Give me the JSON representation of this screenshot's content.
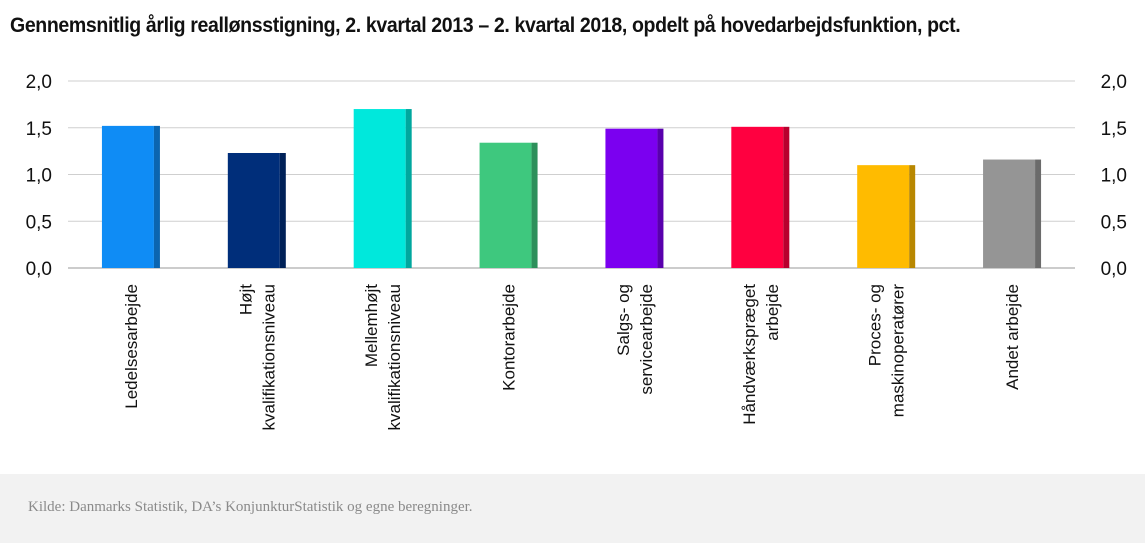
{
  "title": "Gennemsnitlig årlig reallønsstigning, 2. kvartal 2013 – 2. kvartal 2018, opdelt på hovedarbejdsfunktion, pct.",
  "source": "Kilde: Danmarks Statistik, DA’s KonjunkturStatistik og egne beregninger.",
  "chart_data": {
    "type": "bar",
    "title": "Gennemsnitlig årlig reallønsstigning, 2. kvartal 2013 – 2. kvartal 2018, opdelt på hovedarbejdsfunktion, pct.",
    "categories": [
      [
        "Ledelsesarbejde"
      ],
      [
        "Højt",
        "kvalifikationsniveau"
      ],
      [
        "Mellemhøjt",
        "kvalifikationsniveau"
      ],
      [
        "Kontorarbejde"
      ],
      [
        "Salgs- og",
        "servicearbejde"
      ],
      [
        "Håndværkspræget",
        "arbejde"
      ],
      [
        "Proces- og",
        "maskinoperatører"
      ],
      [
        "Andet arbejde"
      ]
    ],
    "values": [
      1.52,
      1.23,
      1.7,
      1.34,
      1.49,
      1.51,
      1.1,
      1.16
    ],
    "colors": [
      "#0f8cf5",
      "#002e7a",
      "#00e8dc",
      "#3ec87e",
      "#7b00f0",
      "#ff0040",
      "#ffbb00",
      "#959595"
    ],
    "ylim": [
      0,
      2.0
    ],
    "yticks": [
      "0,0",
      "0,5",
      "1,0",
      "1,5",
      "2,0"
    ],
    "ytick_values": [
      0,
      0.5,
      1.0,
      1.5,
      2.0
    ],
    "grid": true,
    "secondary_y_axis": true
  }
}
